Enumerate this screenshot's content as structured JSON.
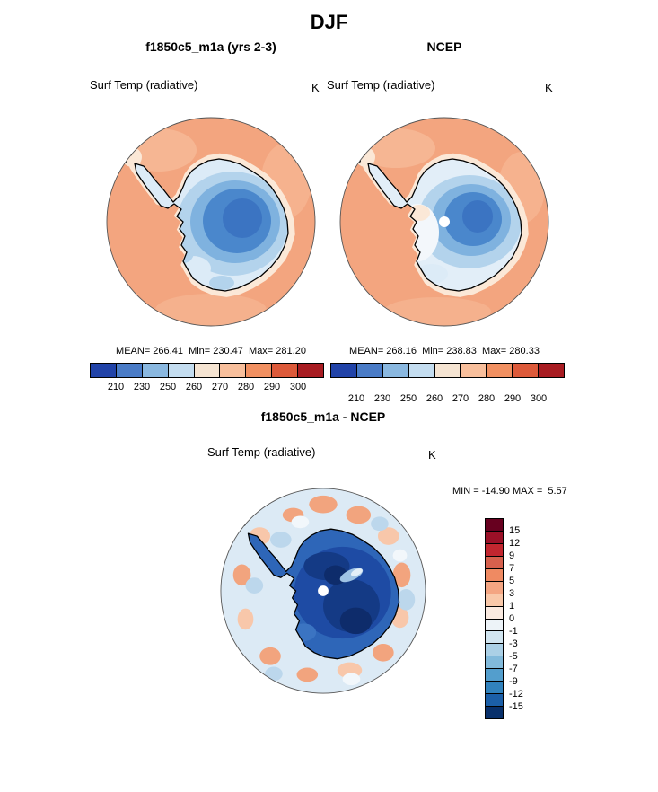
{
  "page": {
    "title": "DJF"
  },
  "panels": {
    "model": {
      "title": "f1850c5_m1a (yrs 2-3)",
      "field": "Surf Temp (radiative)",
      "units": "K",
      "stats": "MEAN= 266.41  Min= 230.47  Max= 281.20"
    },
    "obs": {
      "title": "NCEP",
      "field": "Surf Temp (radiative)",
      "units": "K",
      "stats": "MEAN= 268.16  Min= 238.83  Max= 280.33"
    },
    "diff": {
      "title": "f1850c5_m1a - NCEP",
      "field": "Surf Temp (radiative)",
      "units": "K",
      "minmax": "MIN = -14.90 MAX =  5.57"
    }
  },
  "colorbar_abs": {
    "ticks": [
      "210",
      "230",
      "250",
      "260",
      "270",
      "280",
      "290",
      "300"
    ],
    "palette": [
      "#2143a8",
      "#4a7cc7",
      "#8ab8e0",
      "#c4ddf0",
      "#f5e4d2",
      "#f8bf9c",
      "#f19061",
      "#dd5a3a",
      "#a81c22"
    ]
  },
  "colorbar_diff": {
    "ticks": [
      "15",
      "12",
      "9",
      "7",
      "5",
      "3",
      "1",
      "0",
      "-1",
      "-3",
      "-5",
      "-7",
      "-9",
      "-12",
      "-15"
    ],
    "palette": [
      "#67001f",
      "#9b1027",
      "#c2262f",
      "#d6604d",
      "#ef8a62",
      "#f4a582",
      "#f9c8a9",
      "#faeae0",
      "#edf3f8",
      "#d1e5f0",
      "#abd0e6",
      "#82badb",
      "#539ecd",
      "#3182bd",
      "#1b5fa8",
      "#08306b"
    ]
  },
  "chart_data": [
    {
      "type": "heatmap",
      "panel": "model",
      "title": "f1850c5_m1a (yrs 2-3)",
      "season": "DJF",
      "variable": "Surf Temp (radiative)",
      "units": "K",
      "projection": "south polar stereographic",
      "stats": {
        "mean": 266.41,
        "min": 230.47,
        "max": 281.2
      },
      "contour_levels": [
        210,
        230,
        250,
        260,
        270,
        280,
        290,
        300
      ],
      "legend_position": "below"
    },
    {
      "type": "heatmap",
      "panel": "observations",
      "title": "NCEP",
      "season": "DJF",
      "variable": "Surf Temp (radiative)",
      "units": "K",
      "projection": "south polar stereographic",
      "stats": {
        "mean": 268.16,
        "min": 238.83,
        "max": 280.33
      },
      "contour_levels": [
        210,
        230,
        250,
        260,
        270,
        280,
        290,
        300
      ],
      "legend_position": "below"
    },
    {
      "type": "heatmap",
      "panel": "difference",
      "title": "f1850c5_m1a - NCEP",
      "season": "DJF",
      "variable": "Surf Temp (radiative)",
      "units": "K",
      "projection": "south polar stereographic",
      "stats": {
        "min": -14.9,
        "max": 5.57
      },
      "contour_levels": [
        -15,
        -12,
        -9,
        -7,
        -5,
        -3,
        -1,
        0,
        1,
        3,
        5,
        7,
        9,
        12,
        15
      ],
      "legend_position": "right"
    }
  ]
}
